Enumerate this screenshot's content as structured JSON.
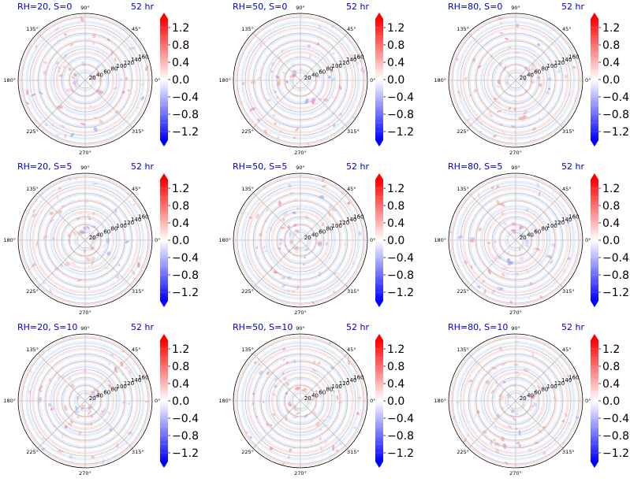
{
  "figure": {
    "time_label": "52 hr"
  },
  "chart_data": {
    "type": "heatmap",
    "projection": "polar",
    "rows": 3,
    "cols": 3,
    "panels": [
      {
        "title": "RH=20, S=0",
        "time": "52 hr"
      },
      {
        "title": "RH=50, S=0",
        "time": "52 hr"
      },
      {
        "title": "RH=80, S=0",
        "time": "52 hr"
      },
      {
        "title": "RH=20, S=5",
        "time": "52 hr"
      },
      {
        "title": "RH=50, S=5",
        "time": "52 hr"
      },
      {
        "title": "RH=80, S=5",
        "time": "52 hr"
      },
      {
        "title": "RH=20, S=10",
        "time": "52 hr"
      },
      {
        "title": "RH=50, S=10",
        "time": "52 hr"
      },
      {
        "title": "RH=80, S=10",
        "time": "52 hr"
      }
    ],
    "angular_ticks": [
      "0°",
      "45°",
      "90°",
      "135°",
      "180°",
      "225°",
      "270°",
      "315°"
    ],
    "radial_ticks": [
      20,
      40,
      60,
      80,
      100,
      120,
      140,
      160
    ],
    "rlim": [
      0,
      170
    ],
    "colorbar": {
      "cmap": "bwr",
      "ticks": [
        "1.2",
        "0.8",
        "0.4",
        "0.0",
        "−0.4",
        "−0.8",
        "−1.2"
      ],
      "tick_values": [
        1.2,
        0.8,
        0.4,
        0.0,
        -0.4,
        -0.8,
        -1.2
      ],
      "range": [
        -1.4,
        1.4
      ],
      "extend": "both",
      "colors": {
        "max": "#ff0000",
        "mid": "#ffffff",
        "min": "#0000ff"
      }
    }
  }
}
